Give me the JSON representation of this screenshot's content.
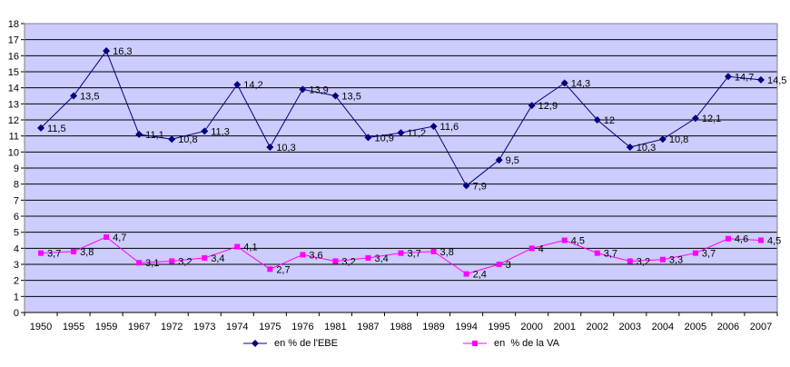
{
  "chart_data": {
    "type": "line",
    "categories": [
      "1950",
      "1955",
      "1959",
      "1967",
      "1972",
      "1973",
      "1974",
      "1975",
      "1976",
      "1981",
      "1987",
      "1988",
      "1989",
      "1994",
      "1995",
      "2000",
      "2001",
      "2002",
      "2003",
      "2004",
      "2005",
      "2006",
      "2007"
    ],
    "ylim": [
      0,
      18
    ],
    "yticks": [
      0,
      1,
      2,
      3,
      4,
      5,
      6,
      7,
      8,
      9,
      10,
      11,
      12,
      13,
      14,
      15,
      16,
      17,
      18
    ],
    "grid": true,
    "legend_position": "bottom",
    "series": [
      {
        "name": "en % de l'EBE",
        "color": "#000080",
        "marker": "diamond",
        "values": [
          11.5,
          13.5,
          16.3,
          11.1,
          10.8,
          11.3,
          14.2,
          10.3,
          13.9,
          13.5,
          10.9,
          11.2,
          11.6,
          7.9,
          9.5,
          12.9,
          14.3,
          12,
          10.3,
          10.8,
          12.1,
          14.7,
          14.5
        ],
        "labels": [
          "11,5",
          "13,5",
          "16,3",
          "11,1",
          "10,8",
          "11,3",
          "14,2",
          "10,3",
          "13,9",
          "13,5",
          "10,9",
          "11,2",
          "11,6",
          "7,9",
          "9,5",
          "12,9",
          "14,3",
          "12",
          "10,3",
          "10,8",
          "12,1",
          "14,7",
          "14,5"
        ]
      },
      {
        "name": "en  % de la VA",
        "color": "#FF00FF",
        "marker": "square",
        "values": [
          3.7,
          3.8,
          4.7,
          3.1,
          3.2,
          3.4,
          4.1,
          2.7,
          3.6,
          3.2,
          3.4,
          3.7,
          3.8,
          2.4,
          3,
          4,
          4.5,
          3.7,
          3.2,
          3.3,
          3.7,
          4.6,
          4.5
        ],
        "labels": [
          "3,7",
          "3,8",
          "4,7",
          "3,1",
          "3,2",
          "3,4",
          "4,1",
          "2,7",
          "3,6",
          "3,2",
          "3,4",
          "3,7",
          "3,8",
          "2,4",
          "3",
          "4",
          "4,5",
          "3,7",
          "3,2",
          "3,3",
          "3,7",
          "4,6",
          "4,5"
        ]
      }
    ],
    "colors": {
      "plot_background": "#CCCCFF",
      "grid": "#000000"
    }
  }
}
